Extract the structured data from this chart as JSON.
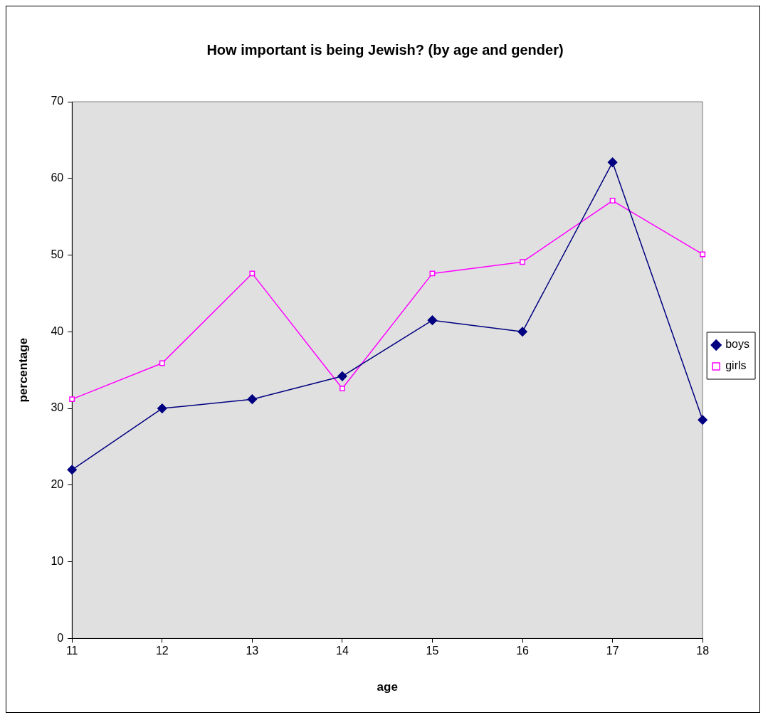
{
  "chart_data": {
    "type": "line",
    "title": "How important is being Jewish? (by age and gender)",
    "xlabel": "age",
    "ylabel": "percentage",
    "categories": [
      "11",
      "12",
      "13",
      "14",
      "15",
      "16",
      "17",
      "18"
    ],
    "series": [
      {
        "name": "boys",
        "color": "#000080",
        "marker": "diamond",
        "values": [
          22.0,
          30.0,
          31.2,
          34.2,
          41.5,
          40.0,
          62.1,
          28.5
        ]
      },
      {
        "name": "girls",
        "color": "#ff00ff",
        "marker": "square",
        "values": [
          31.2,
          35.9,
          47.6,
          32.6,
          47.6,
          49.1,
          57.1,
          50.1
        ]
      }
    ],
    "ylim": [
      0,
      70
    ],
    "yticks": [
      0,
      10,
      20,
      30,
      40,
      50,
      60,
      70
    ],
    "grid": false,
    "legend": "right",
    "line_style": "solid"
  }
}
